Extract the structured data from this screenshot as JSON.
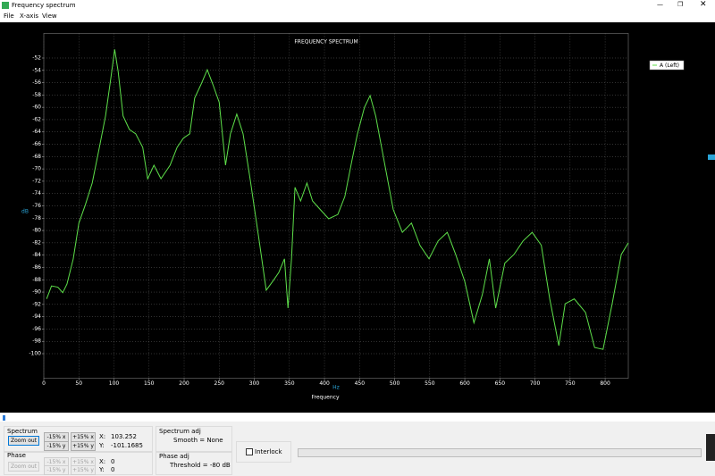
{
  "window": {
    "title": "Frequency spectrum"
  },
  "menu": [
    "File",
    "X-axis",
    "View"
  ],
  "chart_data": {
    "type": "line",
    "title": "FREQUENCY SPECTRUM",
    "x_label": "Frequency",
    "x_unit": "Hz",
    "y_label": "dB",
    "xlim": [
      0,
      833
    ],
    "ylim": [
      -104,
      -48
    ],
    "xticks": [
      0,
      50,
      100,
      150,
      200,
      250,
      300,
      350,
      400,
      450,
      500,
      550,
      600,
      650,
      700,
      750,
      800
    ],
    "yticks": [
      -52,
      -54,
      -56,
      -58,
      -60,
      -62,
      -64,
      -66,
      -68,
      -70,
      -72,
      -74,
      -76,
      -78,
      -80,
      -82,
      -84,
      -86,
      -88,
      -90,
      -92,
      -94,
      -96,
      -98,
      -100
    ],
    "grid": true,
    "legend": "top-right",
    "series": [
      {
        "name": "A (Left)",
        "color": "#5ee04a",
        "x": [
          4,
          11,
          20,
          27,
          33,
          42,
          50,
          59,
          69,
          78,
          88,
          96,
          101,
          106,
          113,
          122,
          131,
          141,
          148,
          157,
          167,
          180,
          190,
          199,
          208,
          215,
          224,
          233,
          241,
          250,
          259,
          266,
          275,
          284,
          294,
          307,
          317,
          326,
          335,
          343,
          348,
          353,
          358,
          366,
          375,
          383,
          394,
          406,
          419,
          429,
          439,
          447,
          457,
          465,
          473,
          485,
          498,
          511,
          524,
          536,
          549,
          562,
          575,
          587,
          600,
          613,
          625,
          635,
          644,
          657,
          670,
          683,
          696,
          709,
          721,
          734,
          743,
          756,
          772,
          785,
          797,
          810,
          823,
          833
        ],
        "values": [
          -91.1,
          -89,
          -89.2,
          -90.1,
          -88.7,
          -84.6,
          -78.8,
          -75.9,
          -72.3,
          -67.2,
          -61.4,
          -54.9,
          -50.6,
          -54.2,
          -61.4,
          -63.6,
          -64.3,
          -66.5,
          -71.6,
          -69.4,
          -71.6,
          -69.4,
          -66.5,
          -65,
          -64.3,
          -58.5,
          -56.3,
          -53.9,
          -56.3,
          -59.2,
          -69.4,
          -64.3,
          -61.1,
          -64.3,
          -71.6,
          -81.7,
          -89.7,
          -88.3,
          -86.8,
          -84.6,
          -92.6,
          -84.6,
          -73,
          -75.2,
          -72.3,
          -75.2,
          -76.6,
          -78.1,
          -77.4,
          -74.5,
          -68.7,
          -64.3,
          -60,
          -58.1,
          -61.4,
          -68.7,
          -76.6,
          -80.3,
          -78.8,
          -82.4,
          -84.6,
          -81.7,
          -80.3,
          -83.9,
          -88.3,
          -95,
          -90.4,
          -84.6,
          -92.6,
          -85.3,
          -83.9,
          -81.7,
          -80.3,
          -82.4,
          -91.1,
          -98.7,
          -91.9,
          -91.1,
          -93.3,
          -99,
          -99.3,
          -91.9,
          -83.9,
          -82
        ]
      }
    ]
  },
  "controls": {
    "spectrum": {
      "label": "Spectrum",
      "zoom": "Zoom out",
      "buttons": [
        "-15% x",
        "+15% x",
        "-15% y",
        "+15% y"
      ],
      "x_label": "X:",
      "x_value": "103.252",
      "y_label": "Y:",
      "y_value": "-101.1685"
    },
    "phase": {
      "label": "Phase",
      "zoom": "Zoom out",
      "buttons": [
        "-15% x",
        "+15% x",
        "-15% y",
        "+15% y"
      ],
      "x_label": "X:",
      "x_value": "0",
      "y_label": "Y:",
      "y_value": "0"
    },
    "spectrum_adj": {
      "label": "Spectrum adj",
      "text": "Smooth = None"
    },
    "phase_adj": {
      "label": "Phase adj",
      "text": "Threshold = -80 dB"
    },
    "interlock": "Interlock"
  }
}
